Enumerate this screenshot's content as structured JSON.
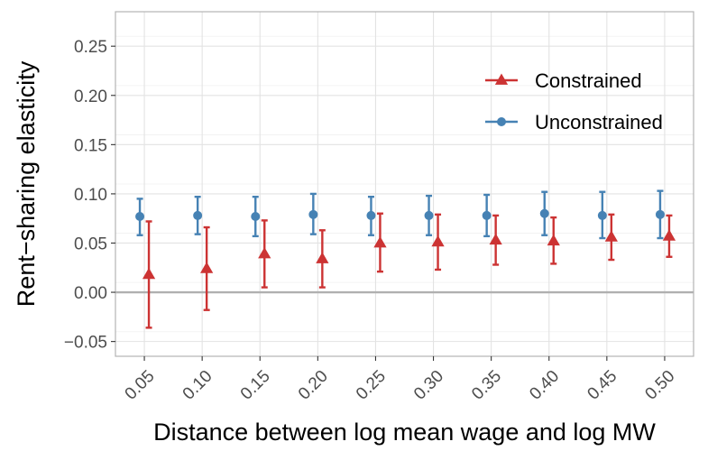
{
  "chart_data": {
    "type": "scatter",
    "title": "",
    "xlabel": "Distance between log mean wage and log MW",
    "ylabel": "Rent−sharing elasticity",
    "categories": [
      "0.05",
      "0.10",
      "0.15",
      "0.20",
      "0.25",
      "0.30",
      "0.35",
      "0.40",
      "0.45",
      "0.50"
    ],
    "ylim": [
      -0.065,
      0.285
    ],
    "yticks": [
      -0.05,
      0.0,
      0.05,
      0.1,
      0.15,
      0.2,
      0.25
    ],
    "ytick_labels": [
      "−0.05",
      "0.00",
      "0.05",
      "0.10",
      "0.15",
      "0.20",
      "0.25"
    ],
    "grid": true,
    "zero_line": true,
    "legend_position": "top-right",
    "series": [
      {
        "name": "Constrained",
        "marker": "triangle",
        "color": "#cc3333",
        "values": [
          0.018,
          0.024,
          0.039,
          0.034,
          0.05,
          0.051,
          0.053,
          0.052,
          0.056,
          0.057
        ],
        "lower": [
          -0.036,
          -0.018,
          0.005,
          0.005,
          0.021,
          0.023,
          0.028,
          0.029,
          0.033,
          0.036
        ],
        "upper": [
          0.072,
          0.066,
          0.073,
          0.063,
          0.08,
          0.079,
          0.078,
          0.076,
          0.079,
          0.078
        ]
      },
      {
        "name": "Unconstrained",
        "marker": "circle",
        "color": "#4682b4",
        "values": [
          0.077,
          0.078,
          0.077,
          0.079,
          0.078,
          0.078,
          0.078,
          0.08,
          0.078,
          0.079
        ],
        "lower": [
          0.058,
          0.059,
          0.057,
          0.059,
          0.058,
          0.058,
          0.057,
          0.058,
          0.055,
          0.055
        ],
        "upper": [
          0.095,
          0.097,
          0.097,
          0.1,
          0.097,
          0.098,
          0.099,
          0.102,
          0.102,
          0.103
        ]
      }
    ]
  }
}
